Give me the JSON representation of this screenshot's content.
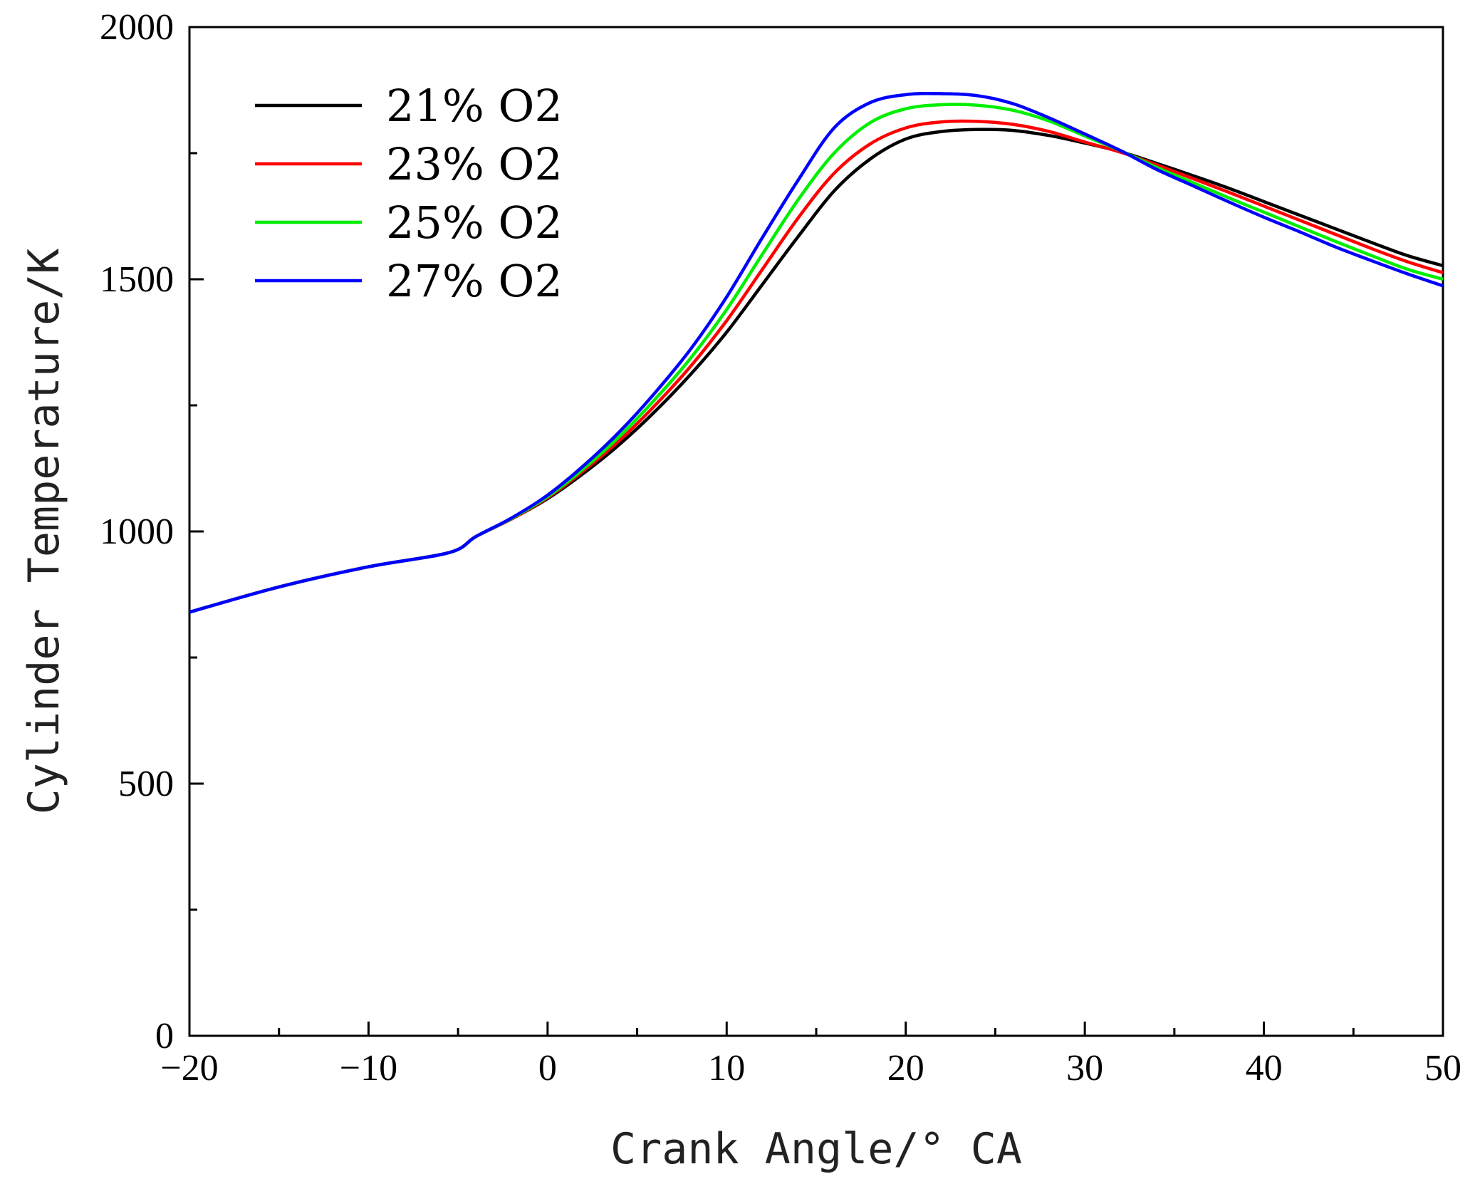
{
  "chart_data": {
    "type": "line",
    "title": "",
    "xlabel": "Crank Angle/° CA",
    "ylabel": "Cylinder Temperature/K",
    "xlim": [
      -20,
      50
    ],
    "ylim": [
      0,
      2000
    ],
    "xticks": [
      -20,
      -10,
      0,
      10,
      20,
      30,
      40,
      50
    ],
    "xtick_labels": [
      "−20",
      "−10",
      "0",
      "10",
      "20",
      "30",
      "40",
      "50"
    ],
    "yticks": [
      0,
      500,
      1000,
      1500,
      2000
    ],
    "ytick_labels": [
      "0",
      "500",
      "1000",
      "1500",
      "2000"
    ],
    "grid": false,
    "legend_position": "top-left",
    "x": [
      -20,
      -15,
      -10,
      -5.5,
      -4,
      -2,
      0,
      2,
      4,
      6,
      8,
      10,
      12,
      14,
      16,
      18,
      20,
      22,
      24,
      26,
      28,
      30,
      32,
      34,
      36,
      38,
      40,
      42,
      44,
      46,
      48,
      50
    ],
    "series": [
      {
        "name": "21% O2",
        "color": "#000000",
        "values": [
          840,
          890,
          930,
          958,
          990,
          1025,
          1065,
          1115,
          1172,
          1238,
          1312,
          1395,
          1490,
          1585,
          1675,
          1738,
          1778,
          1793,
          1797,
          1795,
          1785,
          1770,
          1753,
          1730,
          1706,
          1681,
          1654,
          1627,
          1600,
          1573,
          1547,
          1527
        ]
      },
      {
        "name": "23% O2",
        "color": "#ff0000",
        "values": [
          840,
          890,
          930,
          958,
          990,
          1025,
          1067,
          1120,
          1180,
          1250,
          1328,
          1418,
          1520,
          1622,
          1710,
          1768,
          1800,
          1812,
          1813,
          1807,
          1793,
          1772,
          1752,
          1727,
          1700,
          1673,
          1645,
          1617,
          1589,
          1561,
          1535,
          1513
        ]
      },
      {
        "name": "25% O2",
        "color": "#00ee00",
        "values": [
          840,
          890,
          930,
          958,
          990,
          1026,
          1069,
          1124,
          1188,
          1262,
          1344,
          1440,
          1550,
          1658,
          1750,
          1810,
          1838,
          1846,
          1845,
          1835,
          1814,
          1784,
          1755,
          1722,
          1692,
          1662,
          1633,
          1604,
          1575,
          1547,
          1520,
          1500
        ]
      },
      {
        "name": "27% O2",
        "color": "#0000ff",
        "values": [
          840,
          890,
          930,
          958,
          990,
          1027,
          1072,
          1130,
          1197,
          1275,
          1362,
          1465,
          1583,
          1697,
          1800,
          1850,
          1866,
          1868,
          1864,
          1848,
          1820,
          1788,
          1755,
          1718,
          1686,
          1654,
          1623,
          1594,
          1564,
          1537,
          1511,
          1487
        ]
      }
    ]
  }
}
